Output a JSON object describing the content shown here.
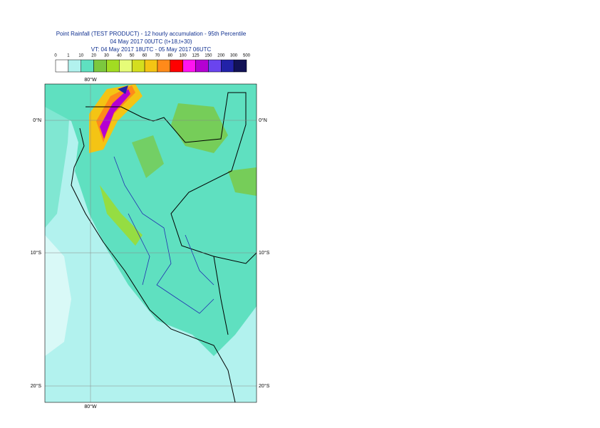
{
  "header": {
    "title": "Point Rainfall (TEST PRODUCT) - 12 hourly accumulation - 95th Percentile",
    "base_time": "04 May 2017 00UTC (t+18,t+30)",
    "valid_time": "VT: 04 May 2017 18UTC - 05 May 2017 06UTC"
  },
  "legend": {
    "labels": [
      "0",
      "1",
      "10",
      "20",
      "30",
      "40",
      "50",
      "60",
      "70",
      "80",
      "100",
      "125",
      "150",
      "200",
      "300",
      "500"
    ],
    "colors": [
      "#ffffff",
      "#b2f2ee",
      "#5fe0c0",
      "#7cc83e",
      "#a2dc22",
      "#e6fc78",
      "#d4de1e",
      "#f4c414",
      "#ff8a1a",
      "#ff0000",
      "#ff14f0",
      "#b400d2",
      "#6a44ee",
      "#2222a8",
      "#121256"
    ]
  },
  "map": {
    "lon_top": "80°W",
    "lon_bottom": "80°W",
    "lat_left": [
      "0°N",
      "10°S",
      "20°S"
    ],
    "lat_right": [
      "0°N",
      "10°S",
      "20°S"
    ]
  }
}
